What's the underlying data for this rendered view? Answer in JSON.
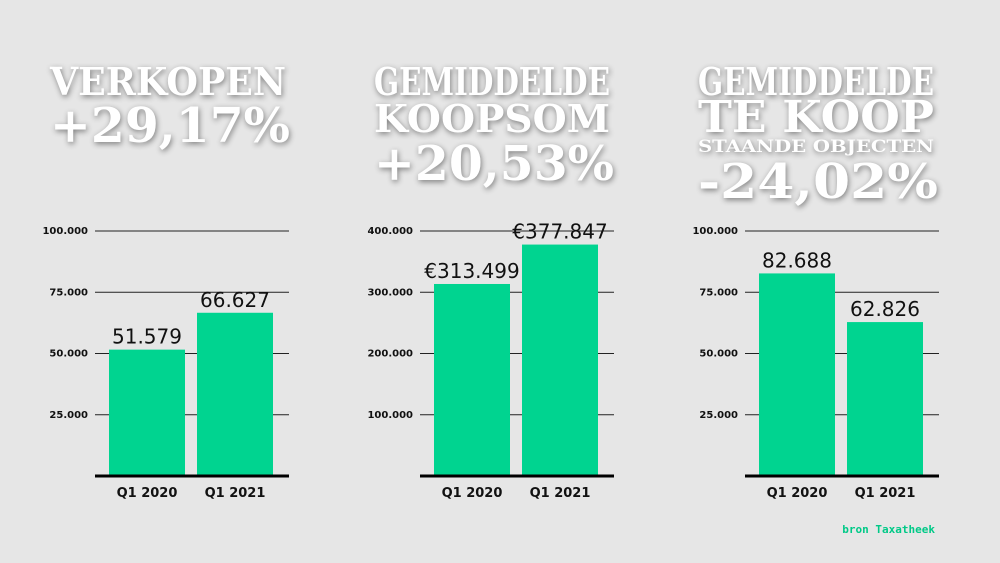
{
  "charts_title_note": null,
  "chart_data": [
    {
      "type": "bar",
      "title": [
        "VERKOPEN"
      ],
      "subtitle": "+29,17%",
      "categories": [
        "Q1 2020",
        "Q1 2021"
      ],
      "values": [
        51579,
        66627
      ],
      "value_labels": [
        "51.579",
        "66.627"
      ],
      "color": "#00d490",
      "ylim": [
        0,
        100000
      ],
      "yticks": [
        {
          "value": 25000,
          "label": "25.000"
        },
        {
          "value": 50000,
          "label": "50.000"
        },
        {
          "value": 75000,
          "label": "75.000"
        },
        {
          "value": 100000,
          "label": "100.000"
        }
      ],
      "grid": true
    },
    {
      "type": "bar",
      "title": [
        "GEMIDDELDE",
        "KOOPSOM"
      ],
      "subtitle": "+20,53%",
      "categories": [
        "Q1 2020",
        "Q1 2021"
      ],
      "values": [
        313499,
        377847
      ],
      "value_labels": [
        "€313.499",
        "€377.847"
      ],
      "color": "#00d490",
      "ylim": [
        0,
        400000
      ],
      "yticks": [
        {
          "value": 100000,
          "label": "100.000"
        },
        {
          "value": 200000,
          "label": "200.000"
        },
        {
          "value": 300000,
          "label": "300.000"
        },
        {
          "value": 400000,
          "label": "400.000"
        }
      ],
      "grid": true
    },
    {
      "type": "bar",
      "title": [
        "GEMIDDELDE",
        "TE KOOP",
        "STAANDE OBJECTEN"
      ],
      "subtitle": "-24,02%",
      "categories": [
        "Q1 2020",
        "Q1 2021"
      ],
      "values": [
        82688,
        62826
      ],
      "value_labels": [
        "82.688",
        "62.826"
      ],
      "color": "#00d490",
      "ylim": [
        0,
        100000
      ],
      "yticks": [
        {
          "value": 25000,
          "label": "25.000"
        },
        {
          "value": 50000,
          "label": "50.000"
        },
        {
          "value": 75000,
          "label": "75.000"
        },
        {
          "value": 100000,
          "label": "100.000"
        }
      ],
      "grid": true
    }
  ],
  "source": "bron Taxatheek"
}
